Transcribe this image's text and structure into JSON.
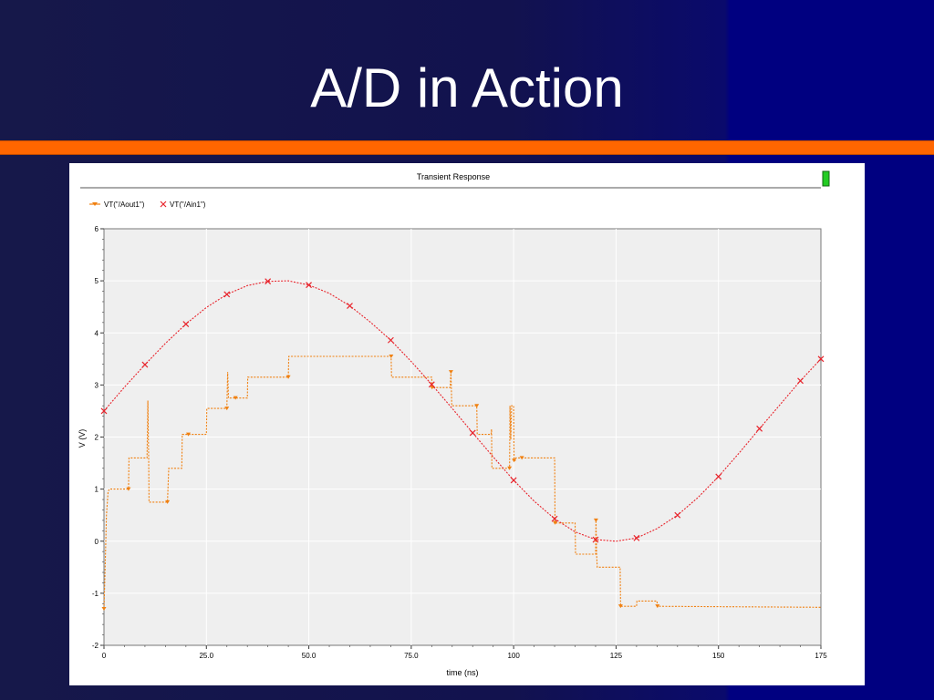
{
  "slide": {
    "title": "A/D in Action"
  },
  "colors": {
    "accent": "#ff6600",
    "aout": "#f08010",
    "ain": "#e8242c",
    "plot_bg": "#efefef"
  },
  "window": {
    "title": "Transient  Response",
    "indicator_icon": "green-scroll-handle"
  },
  "chart_data": {
    "type": "line",
    "title": "Transient  Response",
    "xlabel": "time  (ns)",
    "ylabel": "V (V)",
    "xlim": [
      0,
      175
    ],
    "ylim": [
      -2,
      6
    ],
    "xticks": [
      0,
      25,
      50,
      75,
      100,
      125,
      150,
      175
    ],
    "xtick_labels": [
      "0",
      "25.0",
      "50.0",
      "75.0",
      "100",
      "125",
      "150",
      "175"
    ],
    "yticks": [
      -2,
      -1,
      0,
      1,
      2,
      3,
      4,
      5,
      6
    ],
    "ytick_labels": [
      "-2",
      "-1",
      "0",
      "1",
      "2",
      "3",
      "4",
      "5",
      "6"
    ],
    "grid": true,
    "legend_position": "top-left",
    "series": [
      {
        "name": "VT(\"/Aout1\")",
        "color": "#f08010",
        "marker": "triangle-down",
        "x": [
          0,
          0.3,
          0.6,
          1.0,
          1.3,
          6.0,
          6.1,
          10.5,
          10.7,
          10.9,
          11.0,
          11.3,
          11.6,
          15.5,
          15.8,
          19.0,
          19.1,
          20.5,
          20.6,
          25.0,
          25.1,
          30.0,
          30.2,
          30.4,
          30.6,
          32.0,
          32.1,
          35.0,
          35.1,
          45.0,
          45.1,
          70.0,
          70.1,
          70.2,
          70.4,
          80.0,
          80.1,
          84.5,
          84.7,
          84.9,
          85.0,
          91.0,
          91.1,
          94.5,
          94.6,
          94.7,
          94.9,
          99.0,
          99.1,
          99.3,
          99.5,
          100.0,
          100.1,
          100.4,
          100.5,
          102.0,
          102.1,
          110.0,
          110.1,
          115.0,
          115.1,
          120.0,
          120.1,
          120.25,
          120.4,
          121.5,
          121.6,
          126.0,
          126.1,
          130.0,
          130.1,
          135.0,
          135.1,
          175.0
        ],
        "y": [
          -1.3,
          -0.5,
          0.5,
          0.95,
          1.0,
          1.0,
          1.6,
          1.6,
          2.7,
          1.6,
          0.75,
          0.75,
          0.75,
          0.75,
          1.4,
          1.4,
          2.05,
          2.05,
          2.05,
          2.05,
          2.55,
          2.55,
          3.25,
          2.75,
          2.75,
          2.75,
          2.75,
          2.75,
          3.15,
          3.15,
          3.55,
          3.55,
          3.55,
          3.15,
          3.15,
          3.15,
          2.95,
          2.95,
          3.25,
          2.6,
          2.6,
          2.6,
          2.05,
          2.05,
          2.15,
          1.4,
          1.4,
          1.4,
          2.6,
          1.95,
          2.6,
          2.6,
          1.55,
          1.55,
          1.6,
          1.6,
          1.6,
          1.6,
          0.35,
          0.35,
          -0.25,
          -0.25,
          0.4,
          -0.25,
          -0.5,
          -0.5,
          -0.5,
          -0.5,
          -1.25,
          -1.25,
          -1.15,
          -1.15,
          -1.25,
          -1.27
        ]
      },
      {
        "name": "VT(\"/Ain1\")",
        "color": "#e8242c",
        "marker": "x",
        "x": [
          0,
          5,
          10,
          15,
          20,
          25,
          30,
          35,
          40,
          45,
          50,
          55,
          60,
          65,
          70,
          75,
          80,
          85,
          90,
          95,
          100,
          105,
          110,
          115,
          120,
          125,
          130,
          135,
          140,
          145,
          150,
          155,
          160,
          165,
          170,
          175
        ],
        "y": [
          2.5,
          2.96,
          3.39,
          3.8,
          4.17,
          4.49,
          4.74,
          4.91,
          4.99,
          5.0,
          4.92,
          4.76,
          4.52,
          4.21,
          3.86,
          3.45,
          3.01,
          2.55,
          2.08,
          1.62,
          1.17,
          0.77,
          0.43,
          0.18,
          0.03,
          0.0,
          0.06,
          0.24,
          0.5,
          0.84,
          1.24,
          1.69,
          2.16,
          2.62,
          3.08,
          3.5
        ]
      }
    ]
  }
}
